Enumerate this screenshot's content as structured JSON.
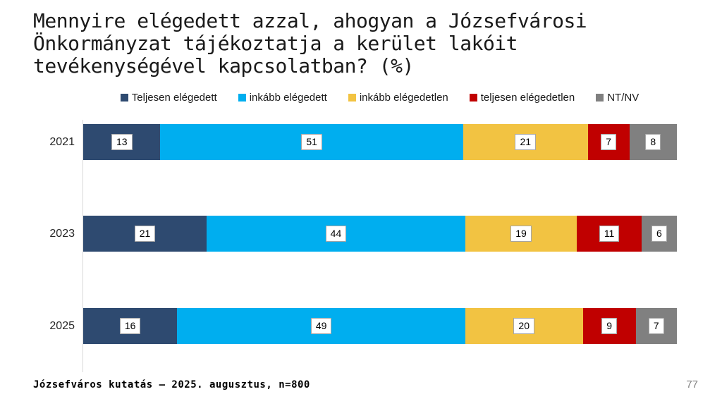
{
  "slide": {
    "title": "Mennyire elégedett azzal, ahogyan a Józsefvárosi\nÖnkormányzat tájékoztatja a kerület lakóit\ntevékenységével kapcsolatban? (%)",
    "footer": {
      "source": "Józsefváros kutatás – 2025. augusztus, n=800",
      "page_number": "77"
    }
  },
  "chart_data": {
    "type": "bar",
    "orientation": "horizontal",
    "stacked_percent": true,
    "title": "Mennyire elégedett azzal, ahogyan a Józsefvárosi Önkormányzat tájékoztatja a kerület lakóit tevékenységével kapcsolatban? (%)",
    "categories": [
      "2021",
      "2023",
      "2025"
    ],
    "series": [
      {
        "name": "Teljesen elégedett",
        "color": "#2e4a70",
        "values": [
          13,
          21,
          16
        ]
      },
      {
        "name": "inkább elégedett",
        "color": "#00aeef",
        "values": [
          51,
          44,
          49
        ]
      },
      {
        "name": "inkább elégedetlen",
        "color": "#f2c342",
        "values": [
          21,
          19,
          20
        ]
      },
      {
        "name": "teljesen elégedetlen",
        "color": "#c00000",
        "values": [
          7,
          11,
          9
        ]
      },
      {
        "name": "NT/NV",
        "color": "#808080",
        "values": [
          8,
          6,
          7
        ]
      }
    ],
    "legend_position": "top",
    "xlim": [
      0,
      100
    ],
    "grid": false,
    "data_labels": "white boxes with gray border",
    "axis_line_color": "#d9d9d9"
  }
}
